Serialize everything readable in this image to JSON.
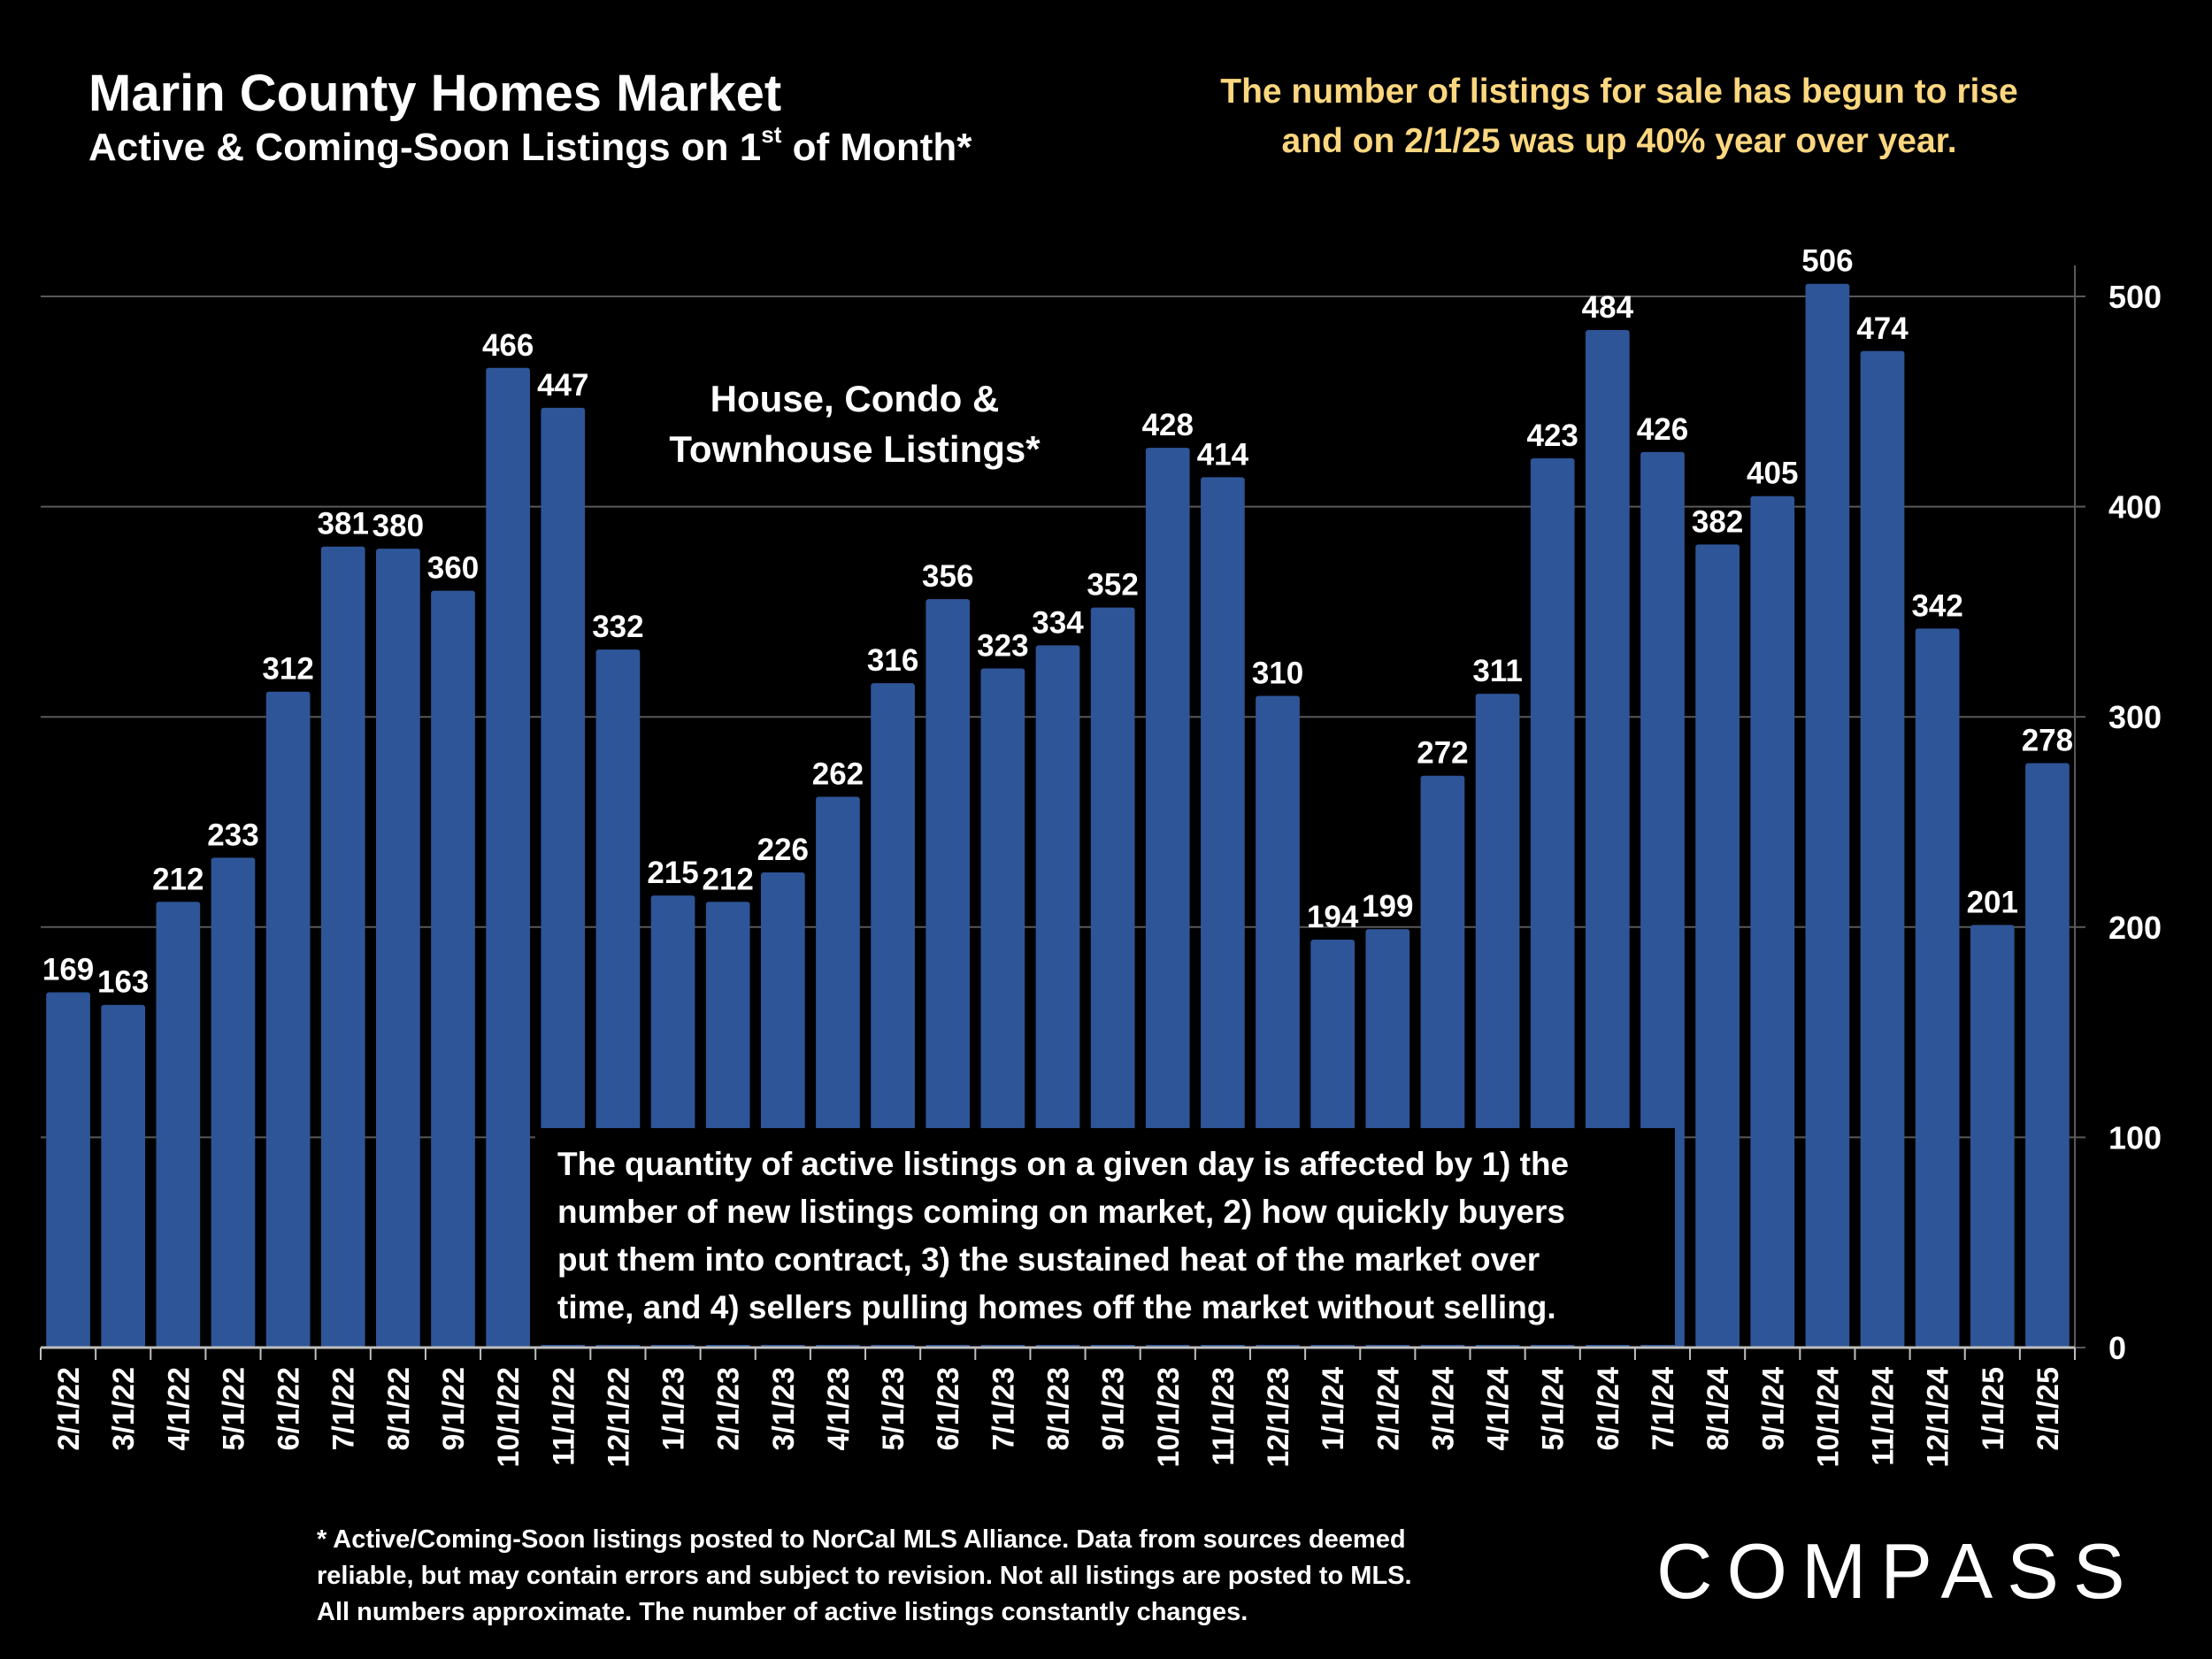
{
  "header": {
    "title": "Marin County Homes Market",
    "subtitle_main": "Active & Coming-Soon Listings on 1",
    "subtitle_sup": "st",
    "subtitle_tail": " of Month*",
    "headline_line1": "The number of listings for sale has begun to rise",
    "headline_line2": "and on 2/1/25 was up 40% year over year."
  },
  "annotations": {
    "series_label_line1": "House, Condo &",
    "series_label_line2": "Townhouse Listings*",
    "note_lines": [
      "The quantity of active listings on a given day is affected by 1) the",
      "number of new listings coming on market, 2) how quickly buyers",
      "put them into contract, 3) the sustained heat of the market over",
      "time, and 4) sellers pulling homes off the market without selling."
    ]
  },
  "footer": {
    "footnote_line1": "* Active/Coming-Soon listings posted to NorCal MLS Alliance.  Data from sources deemed",
    "footnote_line2": "reliable, but may contain errors and subject to revision.  Not all listings are posted to MLS.",
    "footnote_line3": "All numbers approximate. The number of active listings constantly changes.",
    "logo_text": "COMPASS"
  },
  "colors": {
    "background": "#000000",
    "bar": "#2e5597",
    "headline": "#fcd77f",
    "text": "#ffffff",
    "grid": "#595959"
  },
  "chart_data": {
    "type": "bar",
    "categories": [
      "2/1/22",
      "3/1/22",
      "4/1/22",
      "5/1/22",
      "6/1/22",
      "7/1/22",
      "8/1/22",
      "9/1/22",
      "10/1/22",
      "11/1/22",
      "12/1/22",
      "1/1/23",
      "2/1/23",
      "3/1/23",
      "4/1/23",
      "5/1/23",
      "6/1/23",
      "7/1/23",
      "8/1/23",
      "9/1/23",
      "10/1/23",
      "11/1/23",
      "12/1/23",
      "1/1/24",
      "2/1/24",
      "3/1/24",
      "4/1/24",
      "5/1/24",
      "6/1/24",
      "7/1/24",
      "8/1/24",
      "9/1/24",
      "10/1/24",
      "11/1/24",
      "12/1/24",
      "1/1/25",
      "2/1/25"
    ],
    "values": [
      169,
      163,
      212,
      233,
      312,
      381,
      380,
      360,
      466,
      447,
      332,
      215,
      212,
      226,
      262,
      316,
      356,
      323,
      334,
      352,
      428,
      414,
      310,
      194,
      199,
      272,
      311,
      423,
      484,
      426,
      382,
      405,
      506,
      474,
      342,
      201,
      278
    ],
    "value_labels": [
      "169",
      "163",
      "212",
      "233",
      "312",
      "381",
      "380",
      "360",
      "466",
      "447",
      "332",
      "215",
      "212",
      "226",
      "262",
      "316",
      "356",
      "323",
      "334",
      "352",
      "428",
      "414",
      "310",
      "194",
      "199",
      "272",
      "311",
      "423",
      "484",
      "426",
      "382",
      "405",
      "506",
      "474",
      "342",
      "201",
      "278"
    ],
    "y_ticks": [
      "0",
      "100",
      "200",
      "300",
      "400",
      "500"
    ],
    "ylim": [
      0,
      515
    ],
    "y_axis_side": "right",
    "grid": true,
    "legend": "none"
  }
}
